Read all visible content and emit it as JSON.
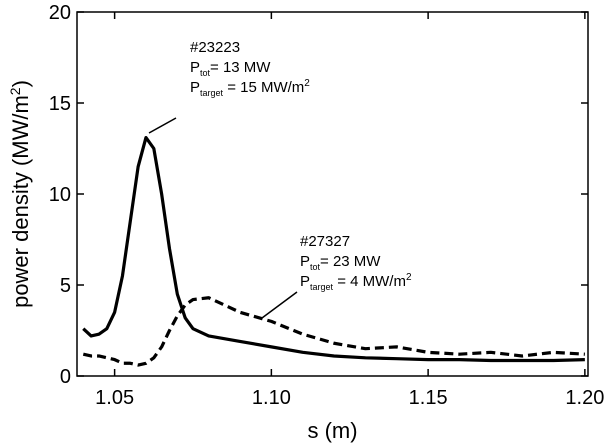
{
  "chart_data": {
    "type": "line",
    "x": [
      1.04,
      1.0425,
      1.045,
      1.0475,
      1.05,
      1.0525,
      1.055,
      1.0575,
      1.06,
      1.0625,
      1.065,
      1.0675,
      1.07,
      1.0725,
      1.075,
      1.08,
      1.09,
      1.1,
      1.11,
      1.12,
      1.13,
      1.14,
      1.15,
      1.16,
      1.17,
      1.18,
      1.19,
      1.2
    ],
    "series": [
      {
        "name": "#23223",
        "color": "#000000",
        "style": "solid",
        "values": [
          2.6,
          2.2,
          2.3,
          2.6,
          3.5,
          5.5,
          8.5,
          11.5,
          13.1,
          12.5,
          10,
          7,
          4.5,
          3.2,
          2.6,
          2.2,
          1.9,
          1.6,
          1.3,
          1.1,
          1.0,
          0.95,
          0.9,
          0.9,
          0.85,
          0.85,
          0.85,
          0.9
        ],
        "annotation": [
          {
            "base": "P",
            "sub": "tot",
            "text": "= 13 MW"
          },
          {
            "base": "P",
            "sub": "target",
            "text": " = 15 MW/m",
            "sup": "2"
          }
        ]
      },
      {
        "name": "#27327",
        "color": "#000000",
        "style": "dashed",
        "values": [
          1.2,
          1.1,
          1.1,
          1.0,
          0.9,
          0.7,
          0.7,
          0.6,
          0.7,
          1.0,
          1.6,
          2.5,
          3.3,
          3.9,
          4.2,
          4.3,
          3.5,
          3.0,
          2.3,
          1.8,
          1.5,
          1.6,
          1.3,
          1.2,
          1.3,
          1.1,
          1.3,
          1.2
        ],
        "annotation": [
          {
            "base": "P",
            "sub": "tot",
            "text": "= 23 MW"
          },
          {
            "base": "P",
            "sub": "target",
            "text": " = 4 MW/m",
            "sup": "2"
          }
        ]
      }
    ],
    "xlabel": "s (m)",
    "ylabel": {
      "text": "power density (MW/m",
      "sup": "2",
      "tail": ")"
    },
    "xlim": [
      1.038,
      1.201
    ],
    "ylim": [
      0,
      20
    ],
    "xticks": [
      1.05,
      {
        "value": 1.1,
        "label": "1.10"
      },
      1.15,
      {
        "value": 1.2,
        "label": "1.20"
      }
    ],
    "yticks": [
      0,
      5,
      10,
      15,
      20
    ],
    "grid": false
  }
}
